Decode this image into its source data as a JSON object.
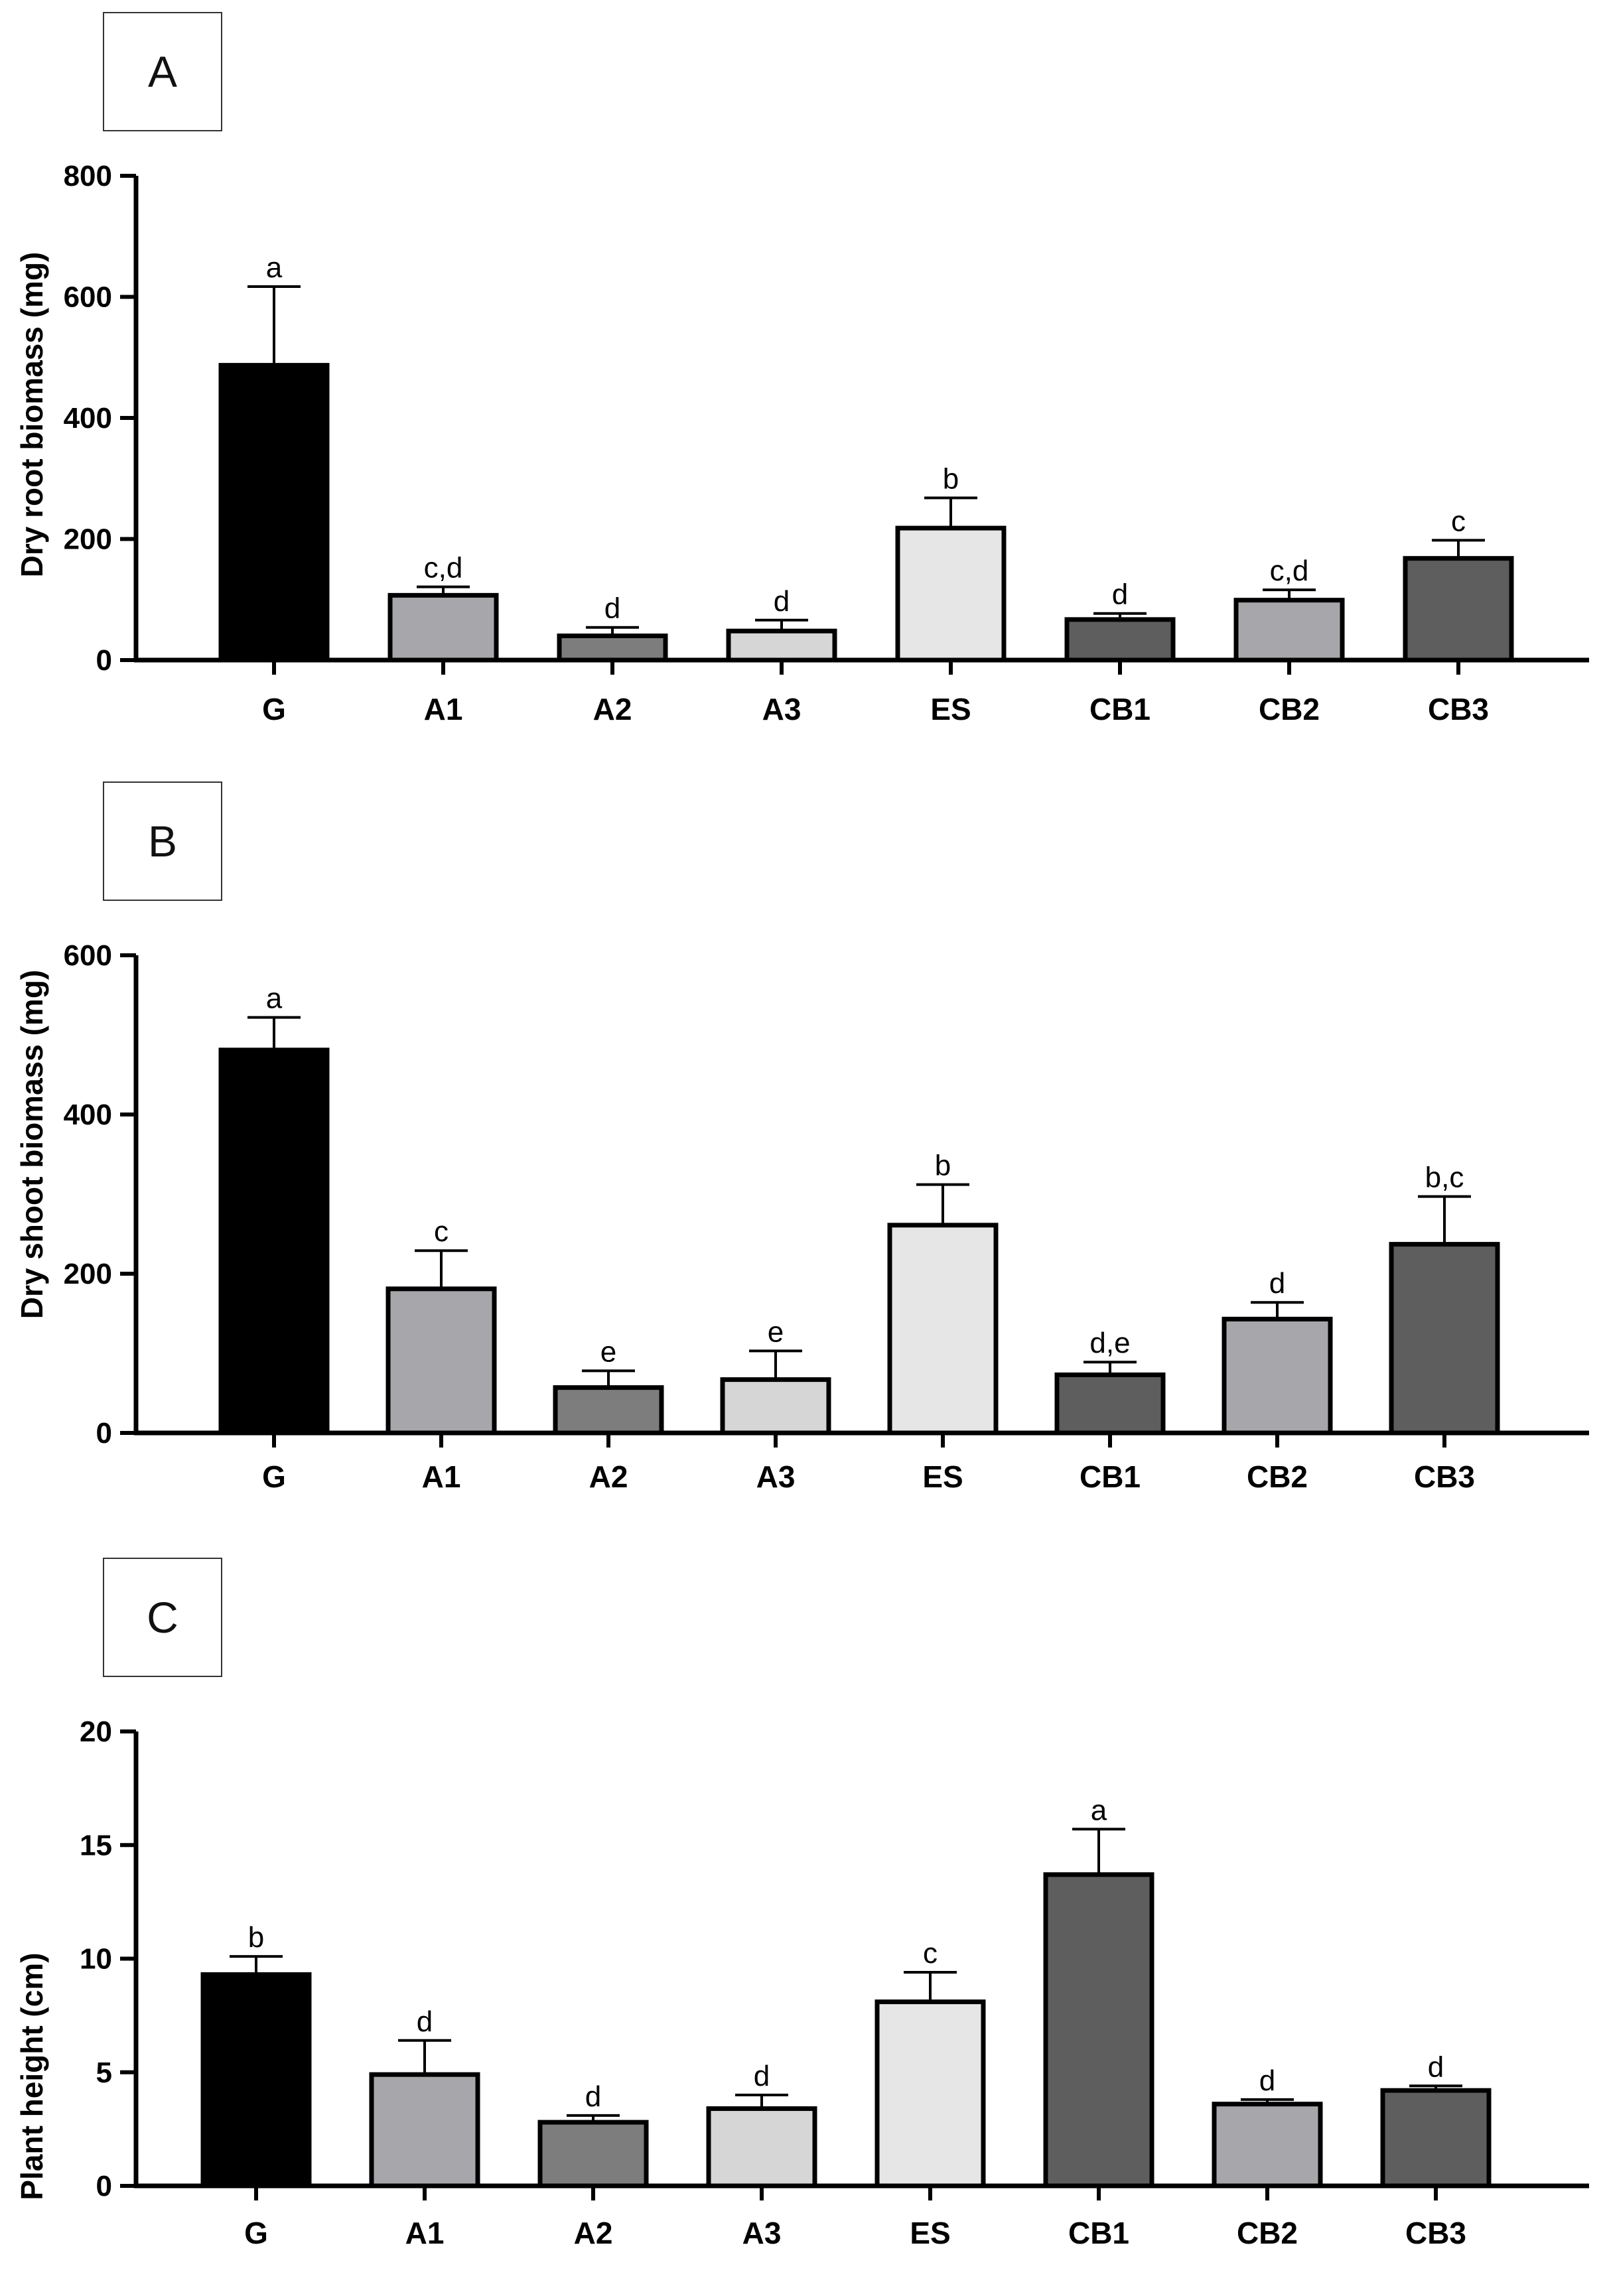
{
  "chart_data": [
    {
      "type": "bar",
      "panel_label": "A",
      "title": "",
      "xlabel": "",
      "ylabel": "Dry root biomass (mg)",
      "ylim": [
        0,
        800
      ],
      "yticks": [
        "0",
        "200",
        "400",
        "600",
        "800"
      ],
      "categories": [
        "G",
        "A1",
        "A2",
        "A3",
        "ES",
        "CB1",
        "CB2",
        "CB3"
      ],
      "values": [
        487,
        107,
        40,
        48,
        218,
        67,
        99,
        168
      ],
      "errors": [
        130,
        14,
        14,
        18,
        50,
        10,
        17,
        30
      ],
      "significance": [
        "a",
        "c,d",
        "d",
        "d",
        "b",
        "d",
        "c,d",
        "c"
      ],
      "colors": [
        "#000000",
        "#a6a6ab",
        "#7d7d7d",
        "#d6d6d6",
        "#e6e6e6",
        "#5e5e5e",
        "#a6a6ab",
        "#5e5e5e"
      ]
    },
    {
      "type": "bar",
      "panel_label": "B",
      "title": "",
      "xlabel": "",
      "ylabel": "Dry shoot biomass (mg)",
      "ylim": [
        0,
        600
      ],
      "yticks": [
        "0",
        "200",
        "400",
        "600"
      ],
      "categories": [
        "G",
        "A1",
        "A2",
        "A3",
        "ES",
        "CB1",
        "CB2",
        "CB3"
      ],
      "values": [
        481,
        181,
        57,
        67,
        261,
        73,
        143,
        237
      ],
      "errors": [
        41,
        48,
        21,
        36,
        51,
        16,
        21,
        60
      ],
      "significance": [
        "a",
        "c",
        "e",
        "e",
        "b",
        "d,e",
        "d",
        "b,c"
      ],
      "colors": [
        "#000000",
        "#a6a6ab",
        "#7d7d7d",
        "#d6d6d6",
        "#e6e6e6",
        "#5e5e5e",
        "#a6a6ab",
        "#5e5e5e"
      ]
    },
    {
      "type": "bar",
      "panel_label": "C",
      "title": "",
      "xlabel": "",
      "ylabel": "Plant height (cm)",
      "ylim": [
        0,
        20
      ],
      "yticks": [
        "0",
        "5",
        "10",
        "15",
        "20"
      ],
      "categories": [
        "G",
        "A1",
        "A2",
        "A3",
        "ES",
        "CB1",
        "CB2",
        "CB3"
      ],
      "values": [
        9.3,
        4.9,
        2.8,
        3.4,
        8.1,
        13.7,
        3.6,
        4.2
      ],
      "errors": [
        0.8,
        1.5,
        0.3,
        0.6,
        1.3,
        2.0,
        0.2,
        0.2
      ],
      "significance": [
        "b",
        "d",
        "d",
        "d",
        "c",
        "a",
        "d",
        "d"
      ],
      "colors": [
        "#000000",
        "#a6a6ab",
        "#7d7d7d",
        "#d6d6d6",
        "#e6e6e6",
        "#5e5e5e",
        "#a6a6ab",
        "#5e5e5e"
      ]
    }
  ]
}
